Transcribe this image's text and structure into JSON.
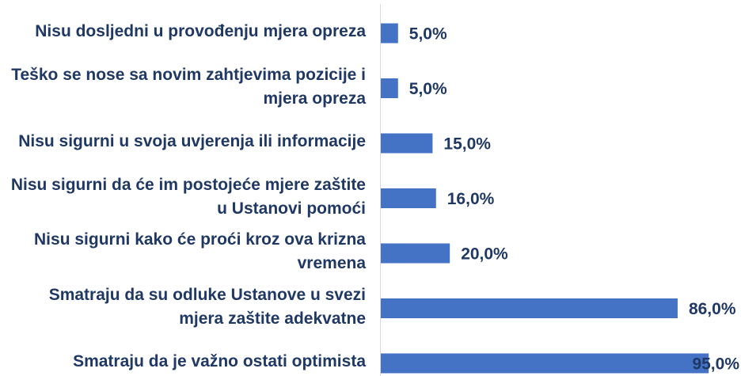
{
  "chart_data": {
    "type": "bar",
    "orientation": "horizontal",
    "categories": [
      "Nisu dosljedni u provođenju mjera opreza",
      "Teško se nose sa novim zahtjevima pozicije i mjera opreza",
      "Nisu sigurni u svoja uvjerenja ili informacije",
      "Nisu sigurni da će im postojeće mjere zaštite u Ustanovi pomoći",
      "Nisu sigurni kako će proći kroz ova krizna vremena",
      "Smatraju da su odluke Ustanove u svezi mjera zaštite adekvatne",
      "Smatraju da je važno ostati optimista"
    ],
    "values": [
      5,
      5,
      15,
      16,
      20,
      86,
      95
    ],
    "value_labels": [
      "5,0%",
      "5,0%",
      "15,0%",
      "16,0%",
      "20,0%",
      "86,0%",
      "95,0%"
    ],
    "color": "#4472c4"
  }
}
